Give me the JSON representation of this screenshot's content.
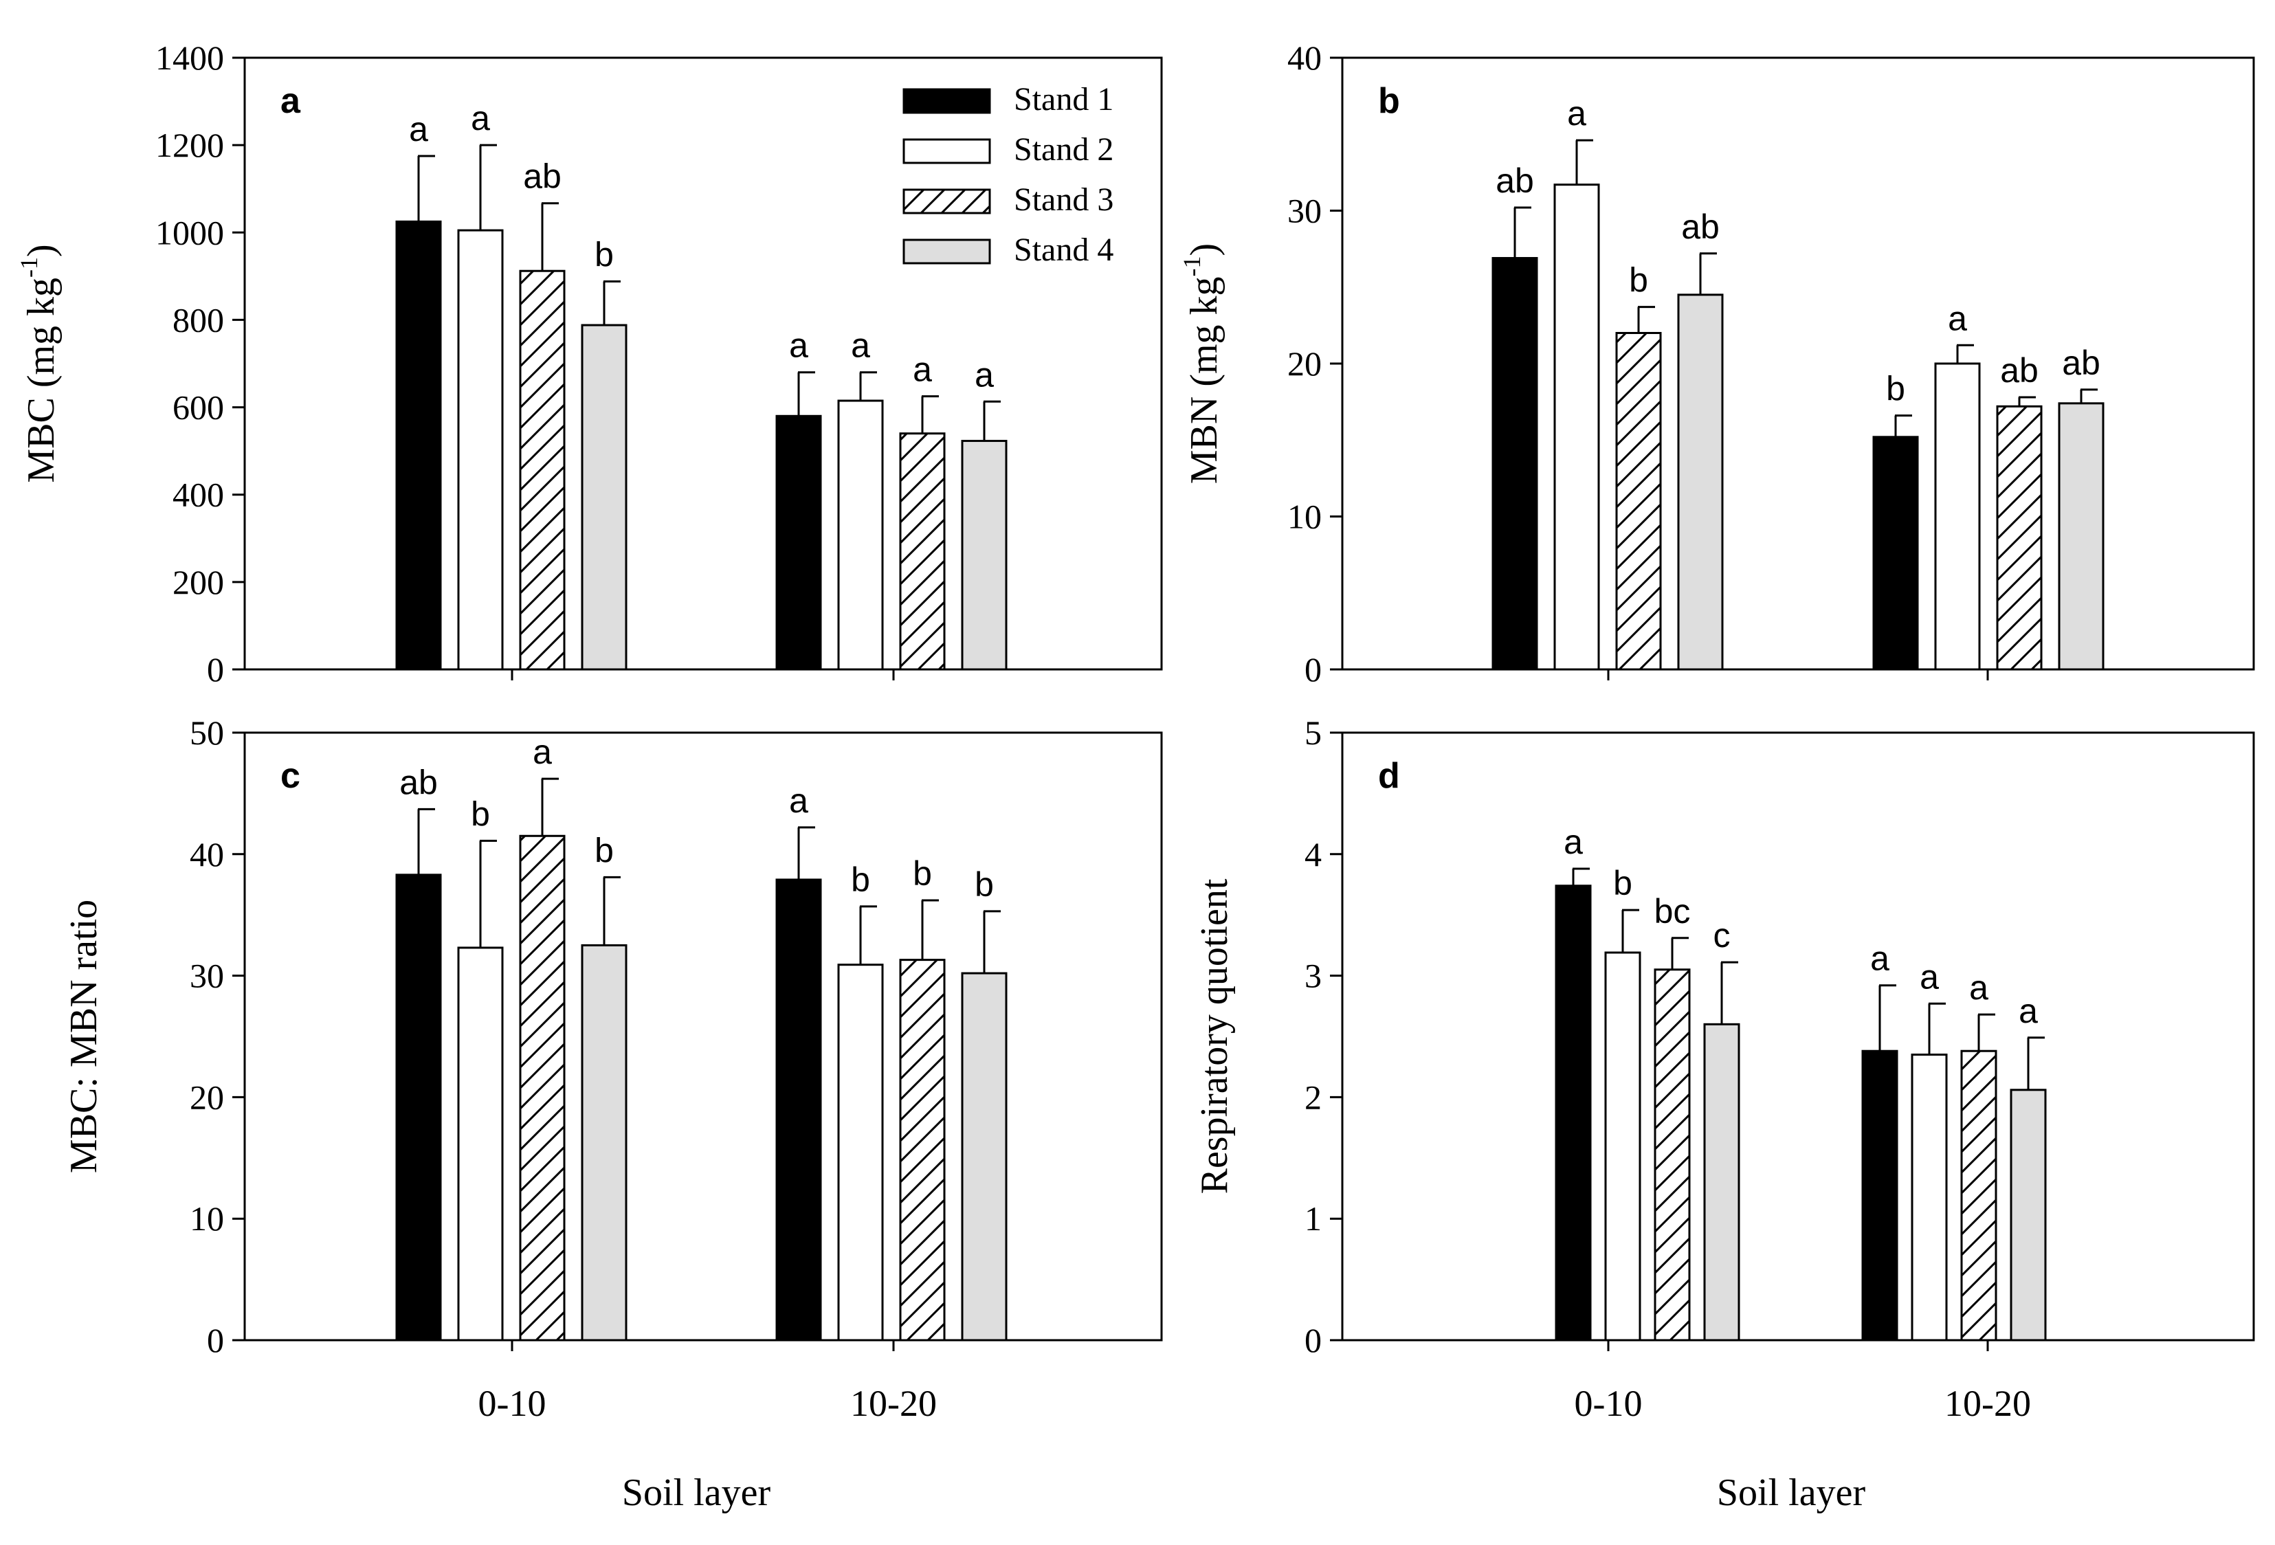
{
  "chart_data": [
    {
      "type": "bar",
      "panel_label": "a",
      "ylabel": "MBC (mg kg-1)",
      "ylabel_main": "MBC (mg kg",
      "ylabel_sup": "-1",
      "ylabel_tail": ")",
      "xlabel": "",
      "ylim": [
        0,
        1400
      ],
      "yticks": [
        "0",
        "200",
        "400",
        "600",
        "800",
        "1000",
        "1200",
        "1400"
      ],
      "categories": [
        "0-10",
        "10-20"
      ],
      "series": [
        {
          "name": "Stand 1",
          "values": [
            1025,
            580
          ],
          "errors": [
            150,
            100
          ],
          "letters": [
            "a",
            "a"
          ]
        },
        {
          "name": "Stand 2",
          "values": [
            1005,
            615
          ],
          "errors": [
            195,
            65
          ],
          "letters": [
            "a",
            "a"
          ]
        },
        {
          "name": "Stand 3",
          "values": [
            912,
            540
          ],
          "errors": [
            155,
            85
          ],
          "letters": [
            "ab",
            "a"
          ]
        },
        {
          "name": "Stand 4",
          "values": [
            788,
            523
          ],
          "errors": [
            100,
            90
          ],
          "letters": [
            "b",
            "a"
          ]
        }
      ],
      "legend": {
        "placement": "top-right",
        "entries": [
          "Stand 1",
          "Stand 2",
          "Stand 3",
          "Stand 4"
        ]
      }
    },
    {
      "type": "bar",
      "panel_label": "b",
      "ylabel": "MBN (mg kg-1)",
      "ylabel_main": "MBN (mg kg",
      "ylabel_sup": "-1",
      "ylabel_tail": ")",
      "xlabel": "",
      "ylim": [
        0,
        40
      ],
      "yticks": [
        "0",
        "10",
        "20",
        "30",
        "40"
      ],
      "categories": [
        "0-10",
        "10-20"
      ],
      "series": [
        {
          "name": "Stand 1",
          "values": [
            26.9,
            15.2
          ],
          "errors": [
            3.3,
            1.4
          ],
          "letters": [
            "ab",
            "b"
          ]
        },
        {
          "name": "Stand 2",
          "values": [
            31.7,
            20.0
          ],
          "errors": [
            2.9,
            1.2
          ],
          "letters": [
            "a",
            "a"
          ]
        },
        {
          "name": "Stand 3",
          "values": [
            22.0,
            17.2
          ],
          "errors": [
            1.7,
            0.6
          ],
          "letters": [
            "b",
            "ab"
          ]
        },
        {
          "name": "Stand 4",
          "values": [
            24.5,
            17.4
          ],
          "errors": [
            2.7,
            0.9
          ],
          "letters": [
            "ab",
            "ab"
          ]
        }
      ]
    },
    {
      "type": "bar",
      "panel_label": "c",
      "ylabel": "MBC: MBN ratio",
      "xlabel": "Soil layer",
      "ylim": [
        0,
        50
      ],
      "yticks": [
        "0",
        "10",
        "20",
        "30",
        "40",
        "50"
      ],
      "categories": [
        "0-10",
        "10-20"
      ],
      "series": [
        {
          "name": "Stand 1",
          "values": [
            38.3,
            37.9
          ],
          "errors": [
            5.4,
            4.3
          ],
          "letters": [
            "ab",
            "a"
          ]
        },
        {
          "name": "Stand 2",
          "values": [
            32.3,
            30.9
          ],
          "errors": [
            8.8,
            4.8
          ],
          "letters": [
            "b",
            "b"
          ]
        },
        {
          "name": "Stand 3",
          "values": [
            41.5,
            31.3
          ],
          "errors": [
            4.7,
            4.9
          ],
          "letters": [
            "a",
            "b"
          ]
        },
        {
          "name": "Stand 4",
          "values": [
            32.5,
            30.2
          ],
          "errors": [
            5.6,
            5.1
          ],
          "letters": [
            "b",
            "b"
          ]
        }
      ]
    },
    {
      "type": "bar",
      "panel_label": "d",
      "ylabel": "Respiratory quotient",
      "xlabel": "Soil layer",
      "ylim": [
        0,
        5
      ],
      "yticks": [
        "0",
        "1",
        "2",
        "3",
        "4",
        "5"
      ],
      "categories": [
        "0-10",
        "10-20"
      ],
      "series": [
        {
          "name": "Stand 1",
          "values": [
            3.74,
            2.38
          ],
          "errors": [
            0.14,
            0.54
          ],
          "letters": [
            "a",
            "a"
          ]
        },
        {
          "name": "Stand 2",
          "values": [
            3.19,
            2.35
          ],
          "errors": [
            0.35,
            0.42
          ],
          "letters": [
            "b",
            "a"
          ]
        },
        {
          "name": "Stand 3",
          "values": [
            3.05,
            2.38
          ],
          "errors": [
            0.26,
            0.3
          ],
          "letters": [
            "bc",
            "a"
          ]
        },
        {
          "name": "Stand 4",
          "values": [
            2.6,
            2.06
          ],
          "errors": [
            0.51,
            0.43
          ],
          "letters": [
            "c",
            "a"
          ]
        }
      ]
    }
  ],
  "colors": {
    "stand1_fill": "#000000",
    "stand2_fill": "#ffffff",
    "stand3_hatch": "#000000",
    "stand4_fill": "#dedede",
    "axis": "#000000"
  }
}
